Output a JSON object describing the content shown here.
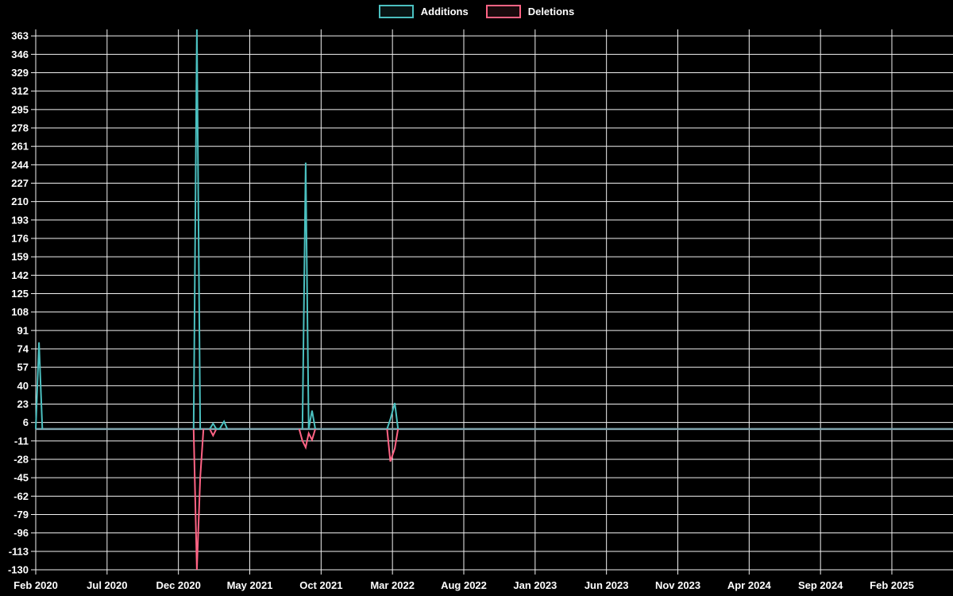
{
  "chart_data": {
    "type": "line",
    "title": "",
    "legend_position": "top",
    "grid": true,
    "legend": [
      {
        "label": "Additions",
        "color": "#4bc0c0"
      },
      {
        "label": "Deletions",
        "color": "#ff6384"
      }
    ],
    "x_tick_labels": [
      "Feb 2020",
      "Jul 2020",
      "Dec 2020",
      "May 2021",
      "Oct 2021",
      "Mar 2022",
      "Aug 2022",
      "Jan 2023",
      "Jun 2023",
      "Nov 2023",
      "Apr 2024",
      "Sep 2024",
      "Feb 2025"
    ],
    "y_tick_values": [
      363,
      346,
      329,
      312,
      295,
      278,
      261,
      244,
      227,
      210,
      193,
      176,
      159,
      142,
      125,
      108,
      91,
      74,
      57,
      40,
      23,
      6,
      -11,
      -28,
      -45,
      -62,
      -79,
      -96,
      -113,
      -130
    ],
    "y_axis_range": [
      -130,
      369
    ],
    "baseline_value": 0,
    "default_weekly_value": 0,
    "weeks": [
      {
        "date": "2020-02-01",
        "additions": 0,
        "deletions": 0
      },
      {
        "date": "2020-02-08",
        "additions": 80,
        "deletions": 0
      },
      {
        "date": "2020-02-15",
        "additions": 0,
        "deletions": 0
      },
      {
        "date": "2021-01-03",
        "additions": 0,
        "deletions": 0
      },
      {
        "date": "2021-01-10",
        "additions": 369,
        "deletions": -130
      },
      {
        "date": "2021-01-17",
        "additions": 0,
        "deletions": -45
      },
      {
        "date": "2021-01-24",
        "additions": 0,
        "deletions": 0
      },
      {
        "date": "2021-02-07",
        "additions": 0,
        "deletions": 0
      },
      {
        "date": "2021-02-14",
        "additions": 5,
        "deletions": -6
      },
      {
        "date": "2021-02-21",
        "additions": 0,
        "deletions": 0
      },
      {
        "date": "2021-02-28",
        "additions": 0,
        "deletions": 0
      },
      {
        "date": "2021-03-07",
        "additions": 7,
        "deletions": 0
      },
      {
        "date": "2021-03-14",
        "additions": 0,
        "deletions": 0
      },
      {
        "date": "2021-08-15",
        "additions": 0,
        "deletions": 0
      },
      {
        "date": "2021-08-22",
        "additions": 0,
        "deletions": -11
      },
      {
        "date": "2021-08-29",
        "additions": 246,
        "deletions": -17
      },
      {
        "date": "2021-09-05",
        "additions": 0,
        "deletions": -4
      },
      {
        "date": "2021-09-12",
        "additions": 17,
        "deletions": -10
      },
      {
        "date": "2021-09-19",
        "additions": 0,
        "deletions": 0
      },
      {
        "date": "2022-02-20",
        "additions": 0,
        "deletions": 0
      },
      {
        "date": "2022-02-27",
        "additions": 9,
        "deletions": -30
      },
      {
        "date": "2022-03-06",
        "additions": 24,
        "deletions": -18
      },
      {
        "date": "2022-03-13",
        "additions": 0,
        "deletions": 0
      }
    ]
  },
  "colors": {
    "background": "#000000",
    "grid": "#f2f2f2",
    "text": "#ffffff",
    "additions": "#4bc0c0",
    "deletions": "#ff6384",
    "baseline_overlap": "#7fa3ad"
  }
}
